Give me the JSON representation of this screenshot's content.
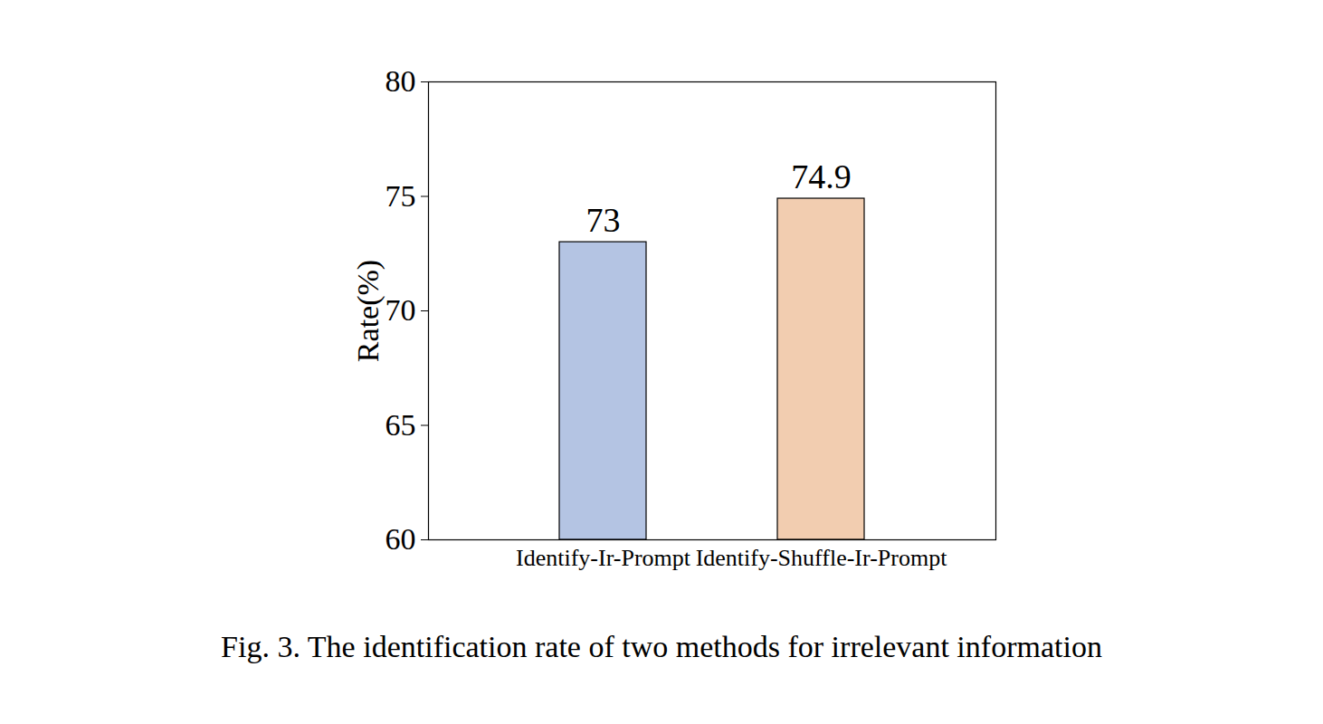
{
  "chart_data": {
    "type": "bar",
    "title": "Fig. 3. The identification rate of two methods for irrelevant information",
    "y_label": "Rate(%)",
    "categories": [
      "Identify-Ir-Prompt",
      "Identify-Shuffle-Ir-Prompt"
    ],
    "values": [
      73,
      74.9
    ],
    "colors": [
      "#b4c4e3",
      "#f2cdb0"
    ],
    "ylim": [
      60,
      80
    ],
    "yticks": [
      60,
      65,
      70,
      75,
      80
    ],
    "grid": false,
    "data_labels": true
  }
}
